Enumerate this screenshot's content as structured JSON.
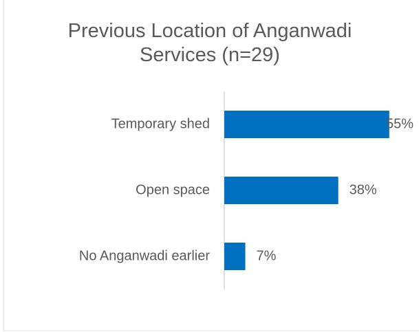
{
  "chart_data": {
    "type": "bar",
    "orientation": "horizontal",
    "title": "Previous Location of Anganwadi Services (n=29)",
    "categories": [
      "Temporary shed",
      "Open space",
      "No Anganwadi earlier"
    ],
    "values": [
      55,
      38,
      7
    ],
    "value_labels": [
      "55%",
      "38%",
      "7%"
    ],
    "color": "#0070c0"
  }
}
